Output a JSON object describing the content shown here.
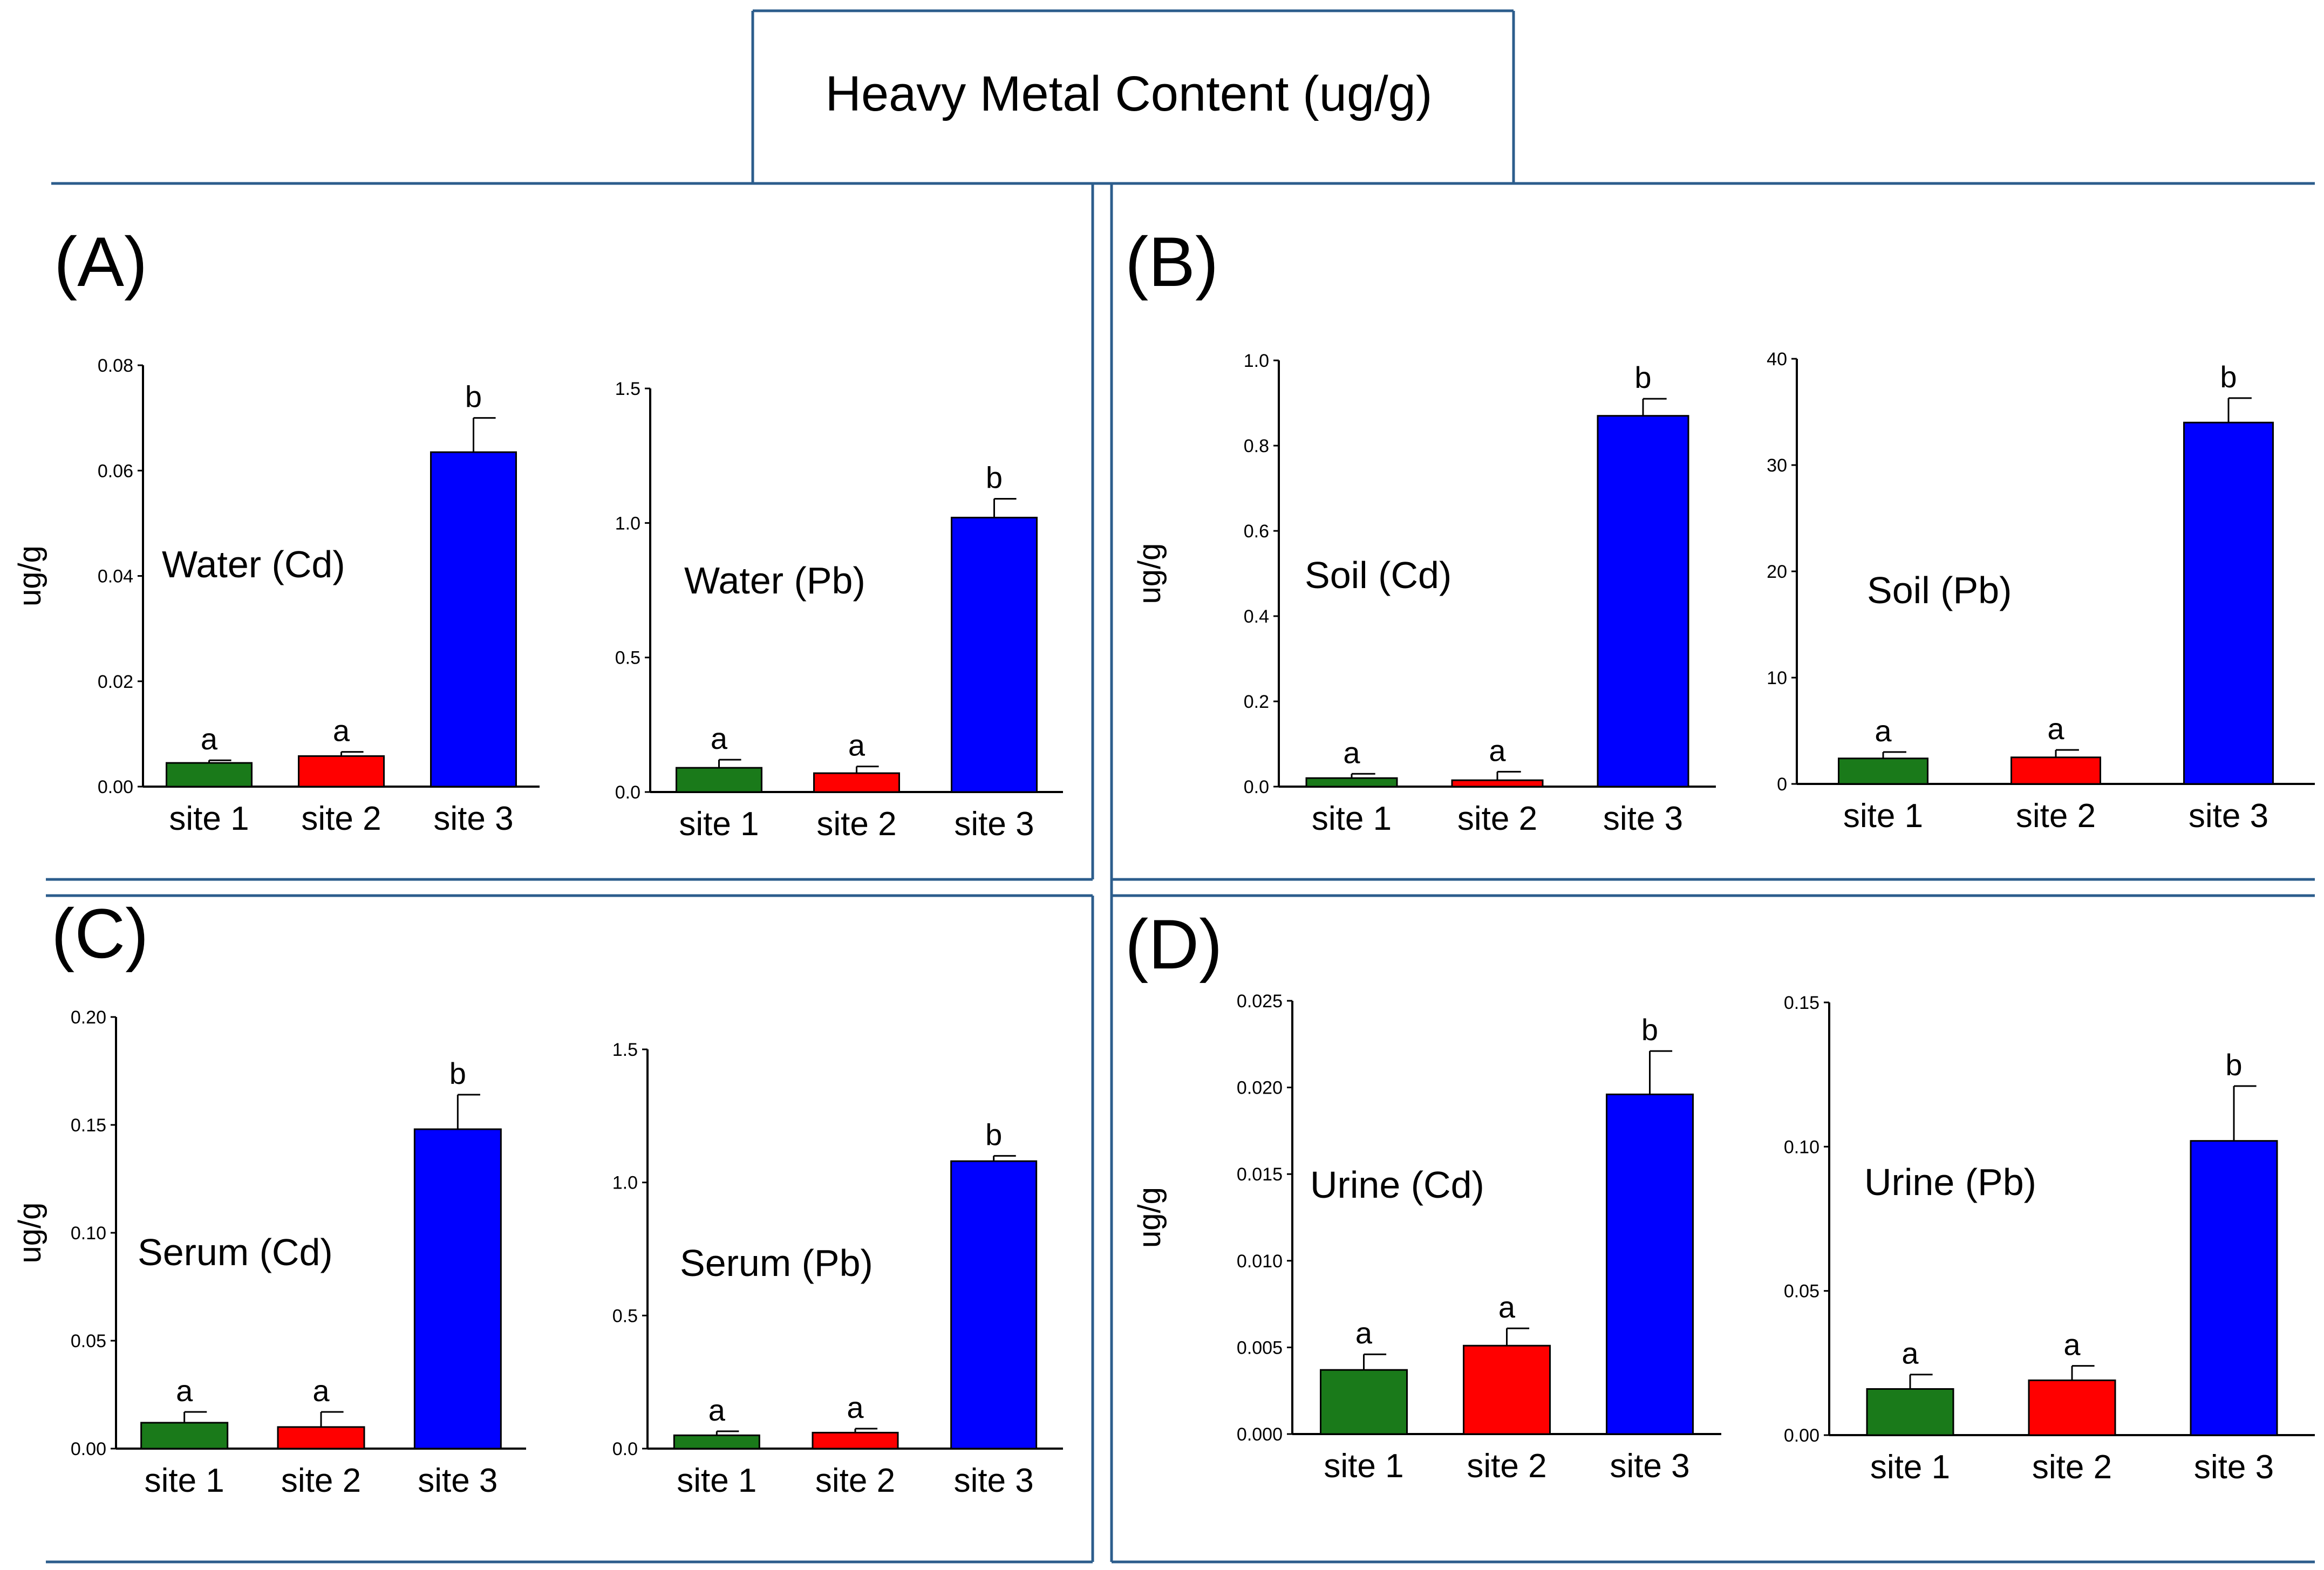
{
  "title": "Heavy Metal Content  (ug/g)",
  "colors": {
    "frame": "#2c5d8c",
    "site_colors": [
      "#1a7a1a",
      "#ff0000",
      "#0000ff"
    ],
    "axis": "#000000",
    "bar_edge": "#000000"
  },
  "chart_data": [
    {
      "panel": "(A)",
      "charts": [
        {
          "type": "bar",
          "title": "Water (Cd)",
          "ylabel": "ug/g",
          "categories": [
            "site 1",
            "site 2",
            "site 3"
          ],
          "values": [
            0.0045,
            0.0058,
            0.0635
          ],
          "errors": [
            0.0005,
            0.0008,
            0.0065
          ],
          "letters": [
            "a",
            "a",
            "b"
          ],
          "ylim": [
            0,
            0.08
          ],
          "yticks": [
            0,
            0.02,
            0.04,
            0.06,
            0.08
          ],
          "ytick_labels": [
            "0.00",
            "0.02",
            "0.04",
            "0.06",
            "0.08"
          ]
        },
        {
          "type": "bar",
          "title": "Water (Pb)",
          "ylabel": "",
          "categories": [
            "site 1",
            "site 2",
            "site 3"
          ],
          "values": [
            0.09,
            0.07,
            1.02
          ],
          "errors": [
            0.03,
            0.025,
            0.07
          ],
          "letters": [
            "a",
            "a",
            "b"
          ],
          "ylim": [
            0,
            1.5
          ],
          "yticks": [
            0,
            0.5,
            1.0,
            1.5
          ],
          "ytick_labels": [
            "0.0",
            "0.5",
            "1.0",
            "1.5"
          ]
        }
      ]
    },
    {
      "panel": "(B)",
      "charts": [
        {
          "type": "bar",
          "title": "Soil (Cd)",
          "ylabel": "ug/g",
          "categories": [
            "site 1",
            "site 2",
            "site 3"
          ],
          "values": [
            0.02,
            0.015,
            0.87
          ],
          "errors": [
            0.01,
            0.02,
            0.04
          ],
          "letters": [
            "a",
            "a",
            "b"
          ],
          "ylim": [
            0,
            1.0
          ],
          "yticks": [
            0,
            0.2,
            0.4,
            0.6,
            0.8,
            1.0
          ],
          "ytick_labels": [
            "0.0",
            "0.2",
            "0.4",
            "0.6",
            "0.8",
            "1.0"
          ]
        },
        {
          "type": "bar",
          "title": "Soil (Pb)",
          "ylabel": "",
          "categories": [
            "site 1",
            "site 2",
            "site 3"
          ],
          "values": [
            2.4,
            2.5,
            34.0
          ],
          "errors": [
            0.6,
            0.7,
            2.3
          ],
          "letters": [
            "a",
            "a",
            "b"
          ],
          "ylim": [
            0,
            40
          ],
          "yticks": [
            0,
            10,
            20,
            30,
            40
          ],
          "ytick_labels": [
            "0",
            "10",
            "20",
            "30",
            "40"
          ]
        }
      ]
    },
    {
      "panel": "(C)",
      "charts": [
        {
          "type": "bar",
          "title": "Serum (Cd)",
          "ylabel": "ug/g",
          "categories": [
            "site 1",
            "site 2",
            "site 3"
          ],
          "values": [
            0.012,
            0.01,
            0.148
          ],
          "errors": [
            0.005,
            0.007,
            0.016
          ],
          "letters": [
            "a",
            "a",
            "b"
          ],
          "ylim": [
            0,
            0.2
          ],
          "yticks": [
            0,
            0.05,
            0.1,
            0.15,
            0.2
          ],
          "ytick_labels": [
            "0.00",
            "0.05",
            "0.10",
            "0.15",
            "0.20"
          ]
        },
        {
          "type": "bar",
          "title": "Serum (Pb)",
          "ylabel": "",
          "categories": [
            "site 1",
            "site 2",
            "site 3"
          ],
          "values": [
            0.05,
            0.06,
            1.08
          ],
          "errors": [
            0.015,
            0.015,
            0.02
          ],
          "letters": [
            "a",
            "a",
            "b"
          ],
          "ylim": [
            0,
            1.5
          ],
          "yticks": [
            0,
            0.5,
            1.0,
            1.5
          ],
          "ytick_labels": [
            "0.0",
            "0.5",
            "1.0",
            "1.5"
          ]
        }
      ]
    },
    {
      "panel": "(D)",
      "charts": [
        {
          "type": "bar",
          "title": "Urine (Cd)",
          "ylabel": "ug/g",
          "categories": [
            "site 1",
            "site 2",
            "site 3"
          ],
          "values": [
            0.0037,
            0.0051,
            0.0196
          ],
          "errors": [
            0.0009,
            0.001,
            0.0025
          ],
          "letters": [
            "a",
            "a",
            "b"
          ],
          "ylim": [
            0,
            0.025
          ],
          "yticks": [
            0,
            0.005,
            0.01,
            0.015,
            0.02,
            0.025
          ],
          "ytick_labels": [
            "0.000",
            "0.005",
            "0.010",
            "0.015",
            "0.020",
            "0.025"
          ]
        },
        {
          "type": "bar",
          "title": "Urine (Pb)",
          "ylabel": "",
          "categories": [
            "site 1",
            "site 2",
            "site 3"
          ],
          "values": [
            0.016,
            0.019,
            0.102
          ],
          "errors": [
            0.005,
            0.005,
            0.019
          ],
          "letters": [
            "a",
            "a",
            "b"
          ],
          "ylim": [
            0,
            0.15
          ],
          "yticks": [
            0,
            0.05,
            0.1,
            0.15
          ],
          "ytick_labels": [
            "0.00",
            "0.05",
            "0.10",
            "0.15"
          ]
        }
      ]
    }
  ]
}
